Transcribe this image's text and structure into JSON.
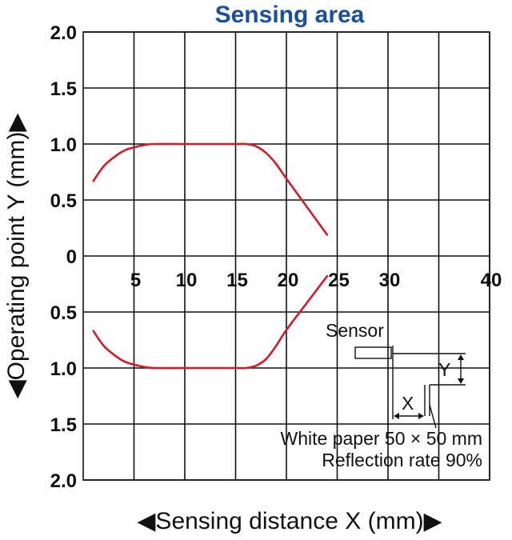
{
  "chart_data": {
    "type": "line",
    "title": "Sensing area",
    "xlabel": "◀Sensing distance X (mm)▶",
    "ylabel": "◀Operating point Y (mm)▶",
    "xlim": [
      0,
      40
    ],
    "ylim": [
      -2.0,
      2.0
    ],
    "x_ticks": [
      5,
      10,
      15,
      20,
      25,
      30,
      35,
      40
    ],
    "x_tick_labels": [
      "5",
      "10",
      "15",
      "20",
      "25",
      "30",
      "",
      "40"
    ],
    "y_ticks": [
      2.0,
      1.5,
      1.0,
      0.5,
      0,
      -0.5,
      -1.0,
      -1.5,
      -2.0
    ],
    "y_tick_labels": [
      "2.0",
      "1.5",
      "1.0",
      "0.5",
      "0",
      "0.5",
      "1.0",
      "1.5",
      "2.0"
    ],
    "grid": true,
    "series": [
      {
        "color": "#d7192b",
        "x": [
          1.0,
          2,
          3,
          4,
          5,
          6,
          7,
          10,
          15,
          16,
          17,
          18,
          19,
          20,
          22,
          24
        ],
        "y": [
          0.67,
          0.8,
          0.88,
          0.94,
          0.97,
          0.99,
          1.0,
          1.0,
          1.0,
          1.0,
          0.98,
          0.92,
          0.82,
          0.69,
          0.44,
          0.19
        ]
      },
      {
        "color": "#d7192b",
        "x": [
          1.0,
          2,
          3,
          4,
          5,
          6,
          7,
          10,
          15,
          16,
          17,
          18,
          19,
          20,
          22,
          24
        ],
        "y": [
          -0.67,
          -0.8,
          -0.88,
          -0.94,
          -0.97,
          -0.99,
          -1.0,
          -1.0,
          -1.0,
          -1.0,
          -0.98,
          -0.92,
          -0.8,
          -0.66,
          -0.42,
          -0.18
        ]
      }
    ],
    "inset": {
      "sensor_label": "Sensor",
      "x_label": "X",
      "y_label": "Y",
      "note_line1": "White paper 50 × 50 mm",
      "note_line2": "Reflection rate 90%"
    }
  }
}
